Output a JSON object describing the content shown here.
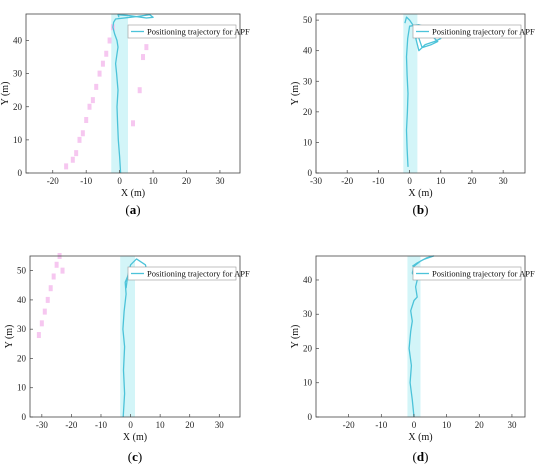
{
  "chart_data": [
    {
      "type": "line",
      "panel_label": "(a)",
      "xlabel": "X (m)",
      "ylabel": "Y (m)",
      "xlim": [
        -28,
        36
      ],
      "ylim": [
        0,
        48
      ],
      "xticks": [
        -20,
        -10,
        0,
        10,
        20,
        30
      ],
      "yticks": [
        0,
        10,
        20,
        30,
        40
      ],
      "legend": "top-right",
      "series": [
        {
          "name": "Positioning trajectory for APF",
          "x": [
            0.3,
            0.0,
            -0.4,
            -0.6,
            -0.8,
            -0.5,
            -0.9,
            -1.2,
            -0.8,
            -0.5,
            -0.8,
            -1.5,
            -2.0,
            -1.8,
            -1.2,
            5.0,
            9.0,
            10.0,
            8.0,
            3.0,
            -0.5,
            -0.2
          ],
          "y": [
            0,
            5,
            10,
            15,
            20,
            25,
            30,
            33,
            36,
            38,
            40,
            42,
            44,
            45.5,
            46.5,
            47.2,
            47.8,
            47.0,
            46.8,
            47.5,
            47.8,
            47
          ]
        }
      ],
      "shaded_band": {
        "x": [
          -2.5,
          2.5
        ],
        "y": [
          0,
          48
        ]
      },
      "points": [
        {
          "x": [
            -16,
            -14,
            -13,
            -12,
            -11,
            -10,
            -9,
            -8,
            -7,
            -6,
            -5,
            -4,
            -3,
            -2,
            4,
            6,
            7,
            8,
            9
          ],
          "y": [
            2,
            4,
            6,
            10,
            12,
            16,
            20,
            22,
            26,
            30,
            33,
            36,
            40,
            44,
            15,
            25,
            35,
            38,
            42
          ]
        }
      ]
    },
    {
      "type": "line",
      "panel_label": "(b)",
      "xlabel": "X (m)",
      "ylabel": "Y (m)",
      "xlim": [
        -30,
        37
      ],
      "ylim": [
        0,
        52
      ],
      "xticks": [
        -30,
        -20,
        -10,
        0,
        10,
        20,
        30
      ],
      "yticks": [
        0,
        10,
        20,
        30,
        40,
        50
      ],
      "legend": "top-right",
      "series": [
        {
          "name": "Positioning trajectory for APF",
          "x": [
            -0.5,
            -0.8,
            -1.0,
            -0.7,
            -0.5,
            -0.8,
            -1.0,
            -0.6,
            0.0,
            3.0,
            6.0,
            9.0,
            10.0,
            8.0,
            5.0,
            3.0,
            2.0,
            4.0,
            7.0,
            9.0,
            7.0,
            4.0,
            2.0,
            0.0,
            -1.0,
            -1.5
          ],
          "y": [
            2,
            8,
            14,
            20,
            26,
            32,
            38,
            44,
            48,
            48.5,
            47.5,
            46,
            44,
            43,
            42,
            40,
            44,
            46,
            45,
            43,
            42,
            41,
            47,
            50,
            51,
            49
          ]
        }
      ],
      "shaded_band": {
        "x": [
          -2.0,
          2.5
        ],
        "y": [
          0,
          52
        ]
      }
    },
    {
      "type": "line",
      "panel_label": "(c)",
      "xlabel": "X (m)",
      "ylabel": "Y (m)",
      "xlim": [
        -34,
        37
      ],
      "ylim": [
        0,
        55
      ],
      "xticks": [
        -30,
        -20,
        -10,
        0,
        10,
        20,
        30
      ],
      "yticks": [
        0,
        10,
        20,
        30,
        40,
        50
      ],
      "legend": "top-right",
      "series": [
        {
          "name": "Positioning trajectory for APF",
          "x": [
            -2.5,
            -2.0,
            -2.4,
            -2.0,
            -2.6,
            -2.2,
            -1.5,
            -1.8,
            -1.0,
            0.0,
            2.0,
            5.0,
            6.0,
            4.0,
            2.0,
            0.0,
            -1.0,
            -1.5
          ],
          "y": [
            0,
            8,
            16,
            24,
            30,
            36,
            42,
            46,
            48,
            52,
            54,
            52,
            48,
            47,
            49,
            50,
            48,
            44
          ]
        }
      ],
      "shaded_band": {
        "x": [
          -3.5,
          1.5
        ],
        "y": [
          0,
          55
        ]
      },
      "points": [
        {
          "x": [
            -31,
            -30,
            -29,
            -28,
            -27,
            -26,
            -25,
            -24,
            -23
          ],
          "y": [
            28,
            32,
            36,
            40,
            44,
            48,
            52,
            55,
            50
          ]
        }
      ]
    },
    {
      "type": "line",
      "panel_label": "(d)",
      "xlabel": "X (m)",
      "ylabel": "Y (m)",
      "xlim": [
        -30,
        34
      ],
      "ylim": [
        0,
        47
      ],
      "xticks": [
        -20,
        -10,
        0,
        10,
        20,
        30
      ],
      "yticks": [
        0,
        10,
        20,
        30,
        40
      ],
      "legend": "top-right",
      "series": [
        {
          "name": "Positioning trajectory for APF",
          "x": [
            0.0,
            -0.5,
            -1.2,
            -0.8,
            -1.5,
            -1.0,
            -0.5,
            -1.0,
            0.0,
            1.0,
            0.5,
            1.0,
            -0.5,
            0.0,
            2.0,
            4.0,
            6.0,
            3.0,
            1.0,
            -0.5
          ],
          "y": [
            0,
            5,
            10,
            15,
            20,
            25,
            28,
            31,
            34,
            35,
            38,
            40,
            42,
            44,
            45.5,
            46.5,
            47,
            46,
            45,
            44
          ]
        }
      ],
      "shaded_band": {
        "x": [
          -2.0,
          2.0
        ],
        "y": [
          0,
          47
        ]
      }
    }
  ]
}
